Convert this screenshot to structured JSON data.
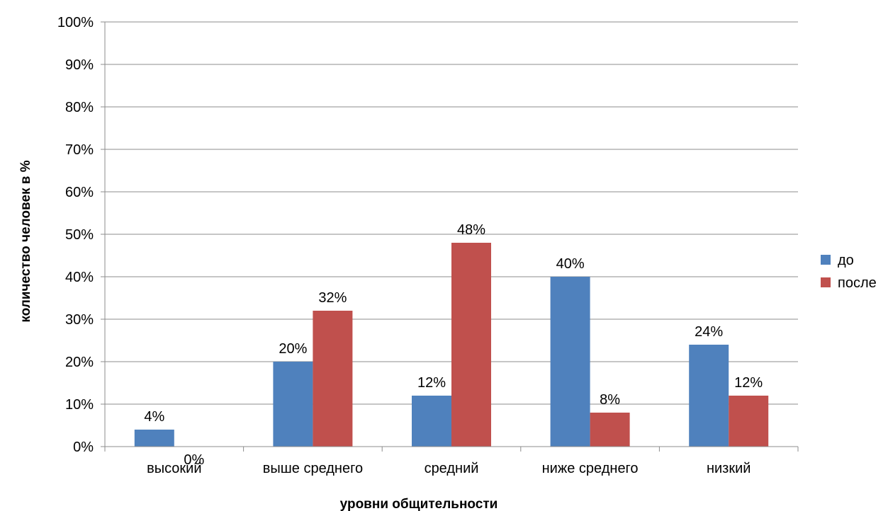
{
  "chart_data": {
    "type": "bar",
    "categories": [
      "высокий",
      "выше среднего",
      "средний",
      "ниже среднего",
      "низкий"
    ],
    "series": [
      {
        "name": "до",
        "values": [
          4,
          20,
          12,
          40,
          24
        ],
        "labels": [
          "4%",
          "20%",
          "12%",
          "40%",
          "24%"
        ]
      },
      {
        "name": "после",
        "values": [
          0,
          32,
          48,
          8,
          12
        ],
        "labels": [
          "0%",
          "32%",
          "48%",
          "8%",
          "12%"
        ]
      }
    ],
    "colors": [
      "#4F81BD",
      "#C0504D"
    ],
    "xlabel": "уровни общительности",
    "ylabel": "количество человек в %",
    "ylim": [
      0,
      100
    ],
    "yticks": [
      0,
      10,
      20,
      30,
      40,
      50,
      60,
      70,
      80,
      90,
      100
    ],
    "ytick_labels": [
      "0%",
      "10%",
      "20%",
      "30%",
      "40%",
      "50%",
      "60%",
      "70%",
      "80%",
      "90%",
      "100%"
    ],
    "grid": true,
    "legend_position": "right"
  }
}
